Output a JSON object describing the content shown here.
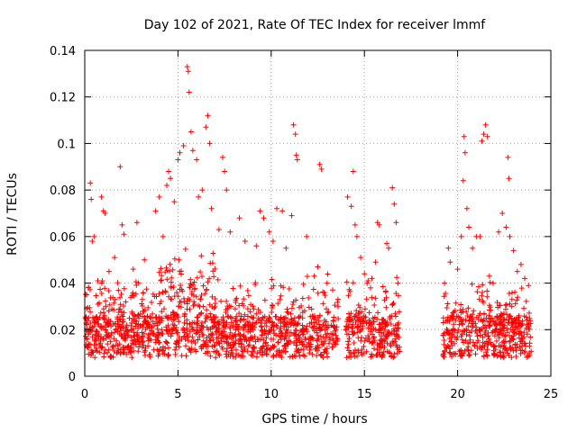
{
  "chart_data": {
    "type": "scatter",
    "title": "Day 102 of 2021, Rate Of TEC Index for receiver lmmf",
    "xlabel": "GPS time / hours",
    "ylabel": "ROTI / TECUs",
    "xlim": [
      0,
      25
    ],
    "ylim": [
      0,
      0.14
    ],
    "x_ticks": [
      "0",
      "5",
      "10",
      "15",
      "20",
      "25"
    ],
    "y_ticks": [
      "0",
      "0.02",
      "0.04",
      "0.06",
      "0.08",
      "0.1",
      "0.12",
      "0.14"
    ],
    "grid": true,
    "legend": "none",
    "marker": "+",
    "color": "#ff0000",
    "gap_hours": [
      [
        13.6,
        14.0
      ],
      [
        16.9,
        19.2
      ]
    ],
    "series": [
      {
        "points": [
          [
            0.1,
            0.035
          ],
          [
            0.2,
            0.038
          ],
          [
            0.3,
            0.083
          ],
          [
            0.35,
            0.076
          ],
          [
            0.4,
            0.058
          ],
          [
            0.5,
            0.06
          ],
          [
            0.7,
            0.041
          ],
          [
            0.9,
            0.077
          ],
          [
            1.0,
            0.071
          ],
          [
            1.1,
            0.07
          ],
          [
            1.3,
            0.045
          ],
          [
            1.6,
            0.051
          ],
          [
            1.9,
            0.09
          ],
          [
            2.0,
            0.065
          ],
          [
            2.1,
            0.061
          ],
          [
            2.6,
            0.046
          ],
          [
            2.8,
            0.066
          ],
          [
            3.2,
            0.05
          ],
          [
            3.8,
            0.071
          ],
          [
            4.0,
            0.077
          ],
          [
            4.2,
            0.06
          ],
          [
            4.4,
            0.082
          ],
          [
            4.5,
            0.088
          ],
          [
            4.6,
            0.085
          ],
          [
            4.8,
            0.075
          ],
          [
            5.0,
            0.093
          ],
          [
            5.1,
            0.096
          ],
          [
            5.3,
            0.099
          ],
          [
            5.5,
            0.133
          ],
          [
            5.55,
            0.131
          ],
          [
            5.6,
            0.122
          ],
          [
            5.7,
            0.105
          ],
          [
            5.8,
            0.097
          ],
          [
            6.0,
            0.093
          ],
          [
            6.1,
            0.077
          ],
          [
            6.3,
            0.08
          ],
          [
            6.5,
            0.107
          ],
          [
            6.6,
            0.112
          ],
          [
            6.7,
            0.1
          ],
          [
            6.8,
            0.072
          ],
          [
            7.2,
            0.063
          ],
          [
            7.4,
            0.094
          ],
          [
            7.5,
            0.088
          ],
          [
            7.6,
            0.08
          ],
          [
            7.8,
            0.062
          ],
          [
            8.3,
            0.068
          ],
          [
            8.6,
            0.058
          ],
          [
            9.2,
            0.056
          ],
          [
            9.4,
            0.071
          ],
          [
            9.6,
            0.068
          ],
          [
            9.9,
            0.062
          ],
          [
            10.1,
            0.058
          ],
          [
            10.3,
            0.072
          ],
          [
            10.6,
            0.071
          ],
          [
            10.8,
            0.055
          ],
          [
            11.1,
            0.069
          ],
          [
            11.2,
            0.108
          ],
          [
            11.3,
            0.104
          ],
          [
            11.35,
            0.095
          ],
          [
            11.4,
            0.093
          ],
          [
            11.9,
            0.06
          ],
          [
            12.3,
            0.043
          ],
          [
            12.5,
            0.047
          ],
          [
            12.6,
            0.091
          ],
          [
            12.7,
            0.089
          ],
          [
            13.0,
            0.04
          ],
          [
            13.3,
            0.037
          ],
          [
            14.1,
            0.077
          ],
          [
            14.3,
            0.073
          ],
          [
            14.4,
            0.088
          ],
          [
            14.5,
            0.065
          ],
          [
            14.6,
            0.06
          ],
          [
            14.8,
            0.051
          ],
          [
            15.0,
            0.044
          ],
          [
            15.2,
            0.041
          ],
          [
            15.4,
            0.042
          ],
          [
            15.6,
            0.049
          ],
          [
            15.7,
            0.066
          ],
          [
            15.8,
            0.065
          ],
          [
            16.2,
            0.057
          ],
          [
            16.3,
            0.055
          ],
          [
            16.5,
            0.081
          ],
          [
            16.6,
            0.074
          ],
          [
            16.7,
            0.066
          ],
          [
            16.8,
            0.04
          ],
          [
            19.3,
            0.04
          ],
          [
            19.5,
            0.055
          ],
          [
            19.6,
            0.049
          ],
          [
            20.0,
            0.046
          ],
          [
            20.2,
            0.06
          ],
          [
            20.3,
            0.084
          ],
          [
            20.35,
            0.103
          ],
          [
            20.4,
            0.096
          ],
          [
            20.5,
            0.072
          ],
          [
            20.6,
            0.064
          ],
          [
            20.8,
            0.055
          ],
          [
            21.0,
            0.06
          ],
          [
            21.2,
            0.06
          ],
          [
            21.3,
            0.101
          ],
          [
            21.4,
            0.104
          ],
          [
            21.5,
            0.108
          ],
          [
            21.6,
            0.103
          ],
          [
            21.7,
            0.043
          ],
          [
            21.9,
            0.04
          ],
          [
            22.2,
            0.062
          ],
          [
            22.4,
            0.07
          ],
          [
            22.6,
            0.064
          ],
          [
            22.7,
            0.094
          ],
          [
            22.75,
            0.085
          ],
          [
            22.8,
            0.06
          ],
          [
            23.0,
            0.054
          ],
          [
            23.2,
            0.045
          ],
          [
            23.4,
            0.048
          ],
          [
            23.6,
            0.042
          ],
          [
            23.8,
            0.039
          ]
        ]
      }
    ]
  }
}
